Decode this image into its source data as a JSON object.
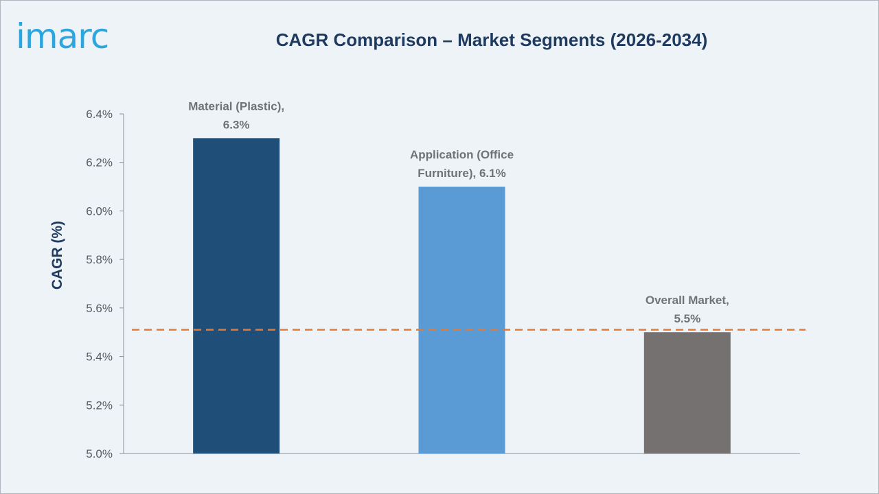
{
  "logo": {
    "text": "imarc",
    "color": "#2ca6df"
  },
  "chart_data": {
    "type": "bar",
    "title": "CAGR Comparison – Market Segments (2026-2034)",
    "ylabel": "CAGR (%)",
    "xlabel": "",
    "ylim": [
      5.0,
      6.4
    ],
    "yticks": [
      "5.0%",
      "5.2%",
      "5.4%",
      "5.6%",
      "5.8%",
      "6.0%",
      "6.2%",
      "6.4%"
    ],
    "grid": false,
    "categories": [
      "Material (Plastic)",
      "Application (Office Furniture)",
      "Overall Market"
    ],
    "values": [
      6.3,
      6.1,
      5.5
    ],
    "data_labels": [
      [
        "Material (Plastic),",
        "6.3%"
      ],
      [
        "Application (Office",
        "Furniture), 6.1%"
      ],
      [
        "Overall Market,",
        "5.5%"
      ]
    ],
    "colors": [
      "#1f4e79",
      "#5b9bd5",
      "#767171"
    ],
    "reference_line": {
      "value": 5.51,
      "style": "dashed",
      "color": "#e07b39"
    }
  }
}
